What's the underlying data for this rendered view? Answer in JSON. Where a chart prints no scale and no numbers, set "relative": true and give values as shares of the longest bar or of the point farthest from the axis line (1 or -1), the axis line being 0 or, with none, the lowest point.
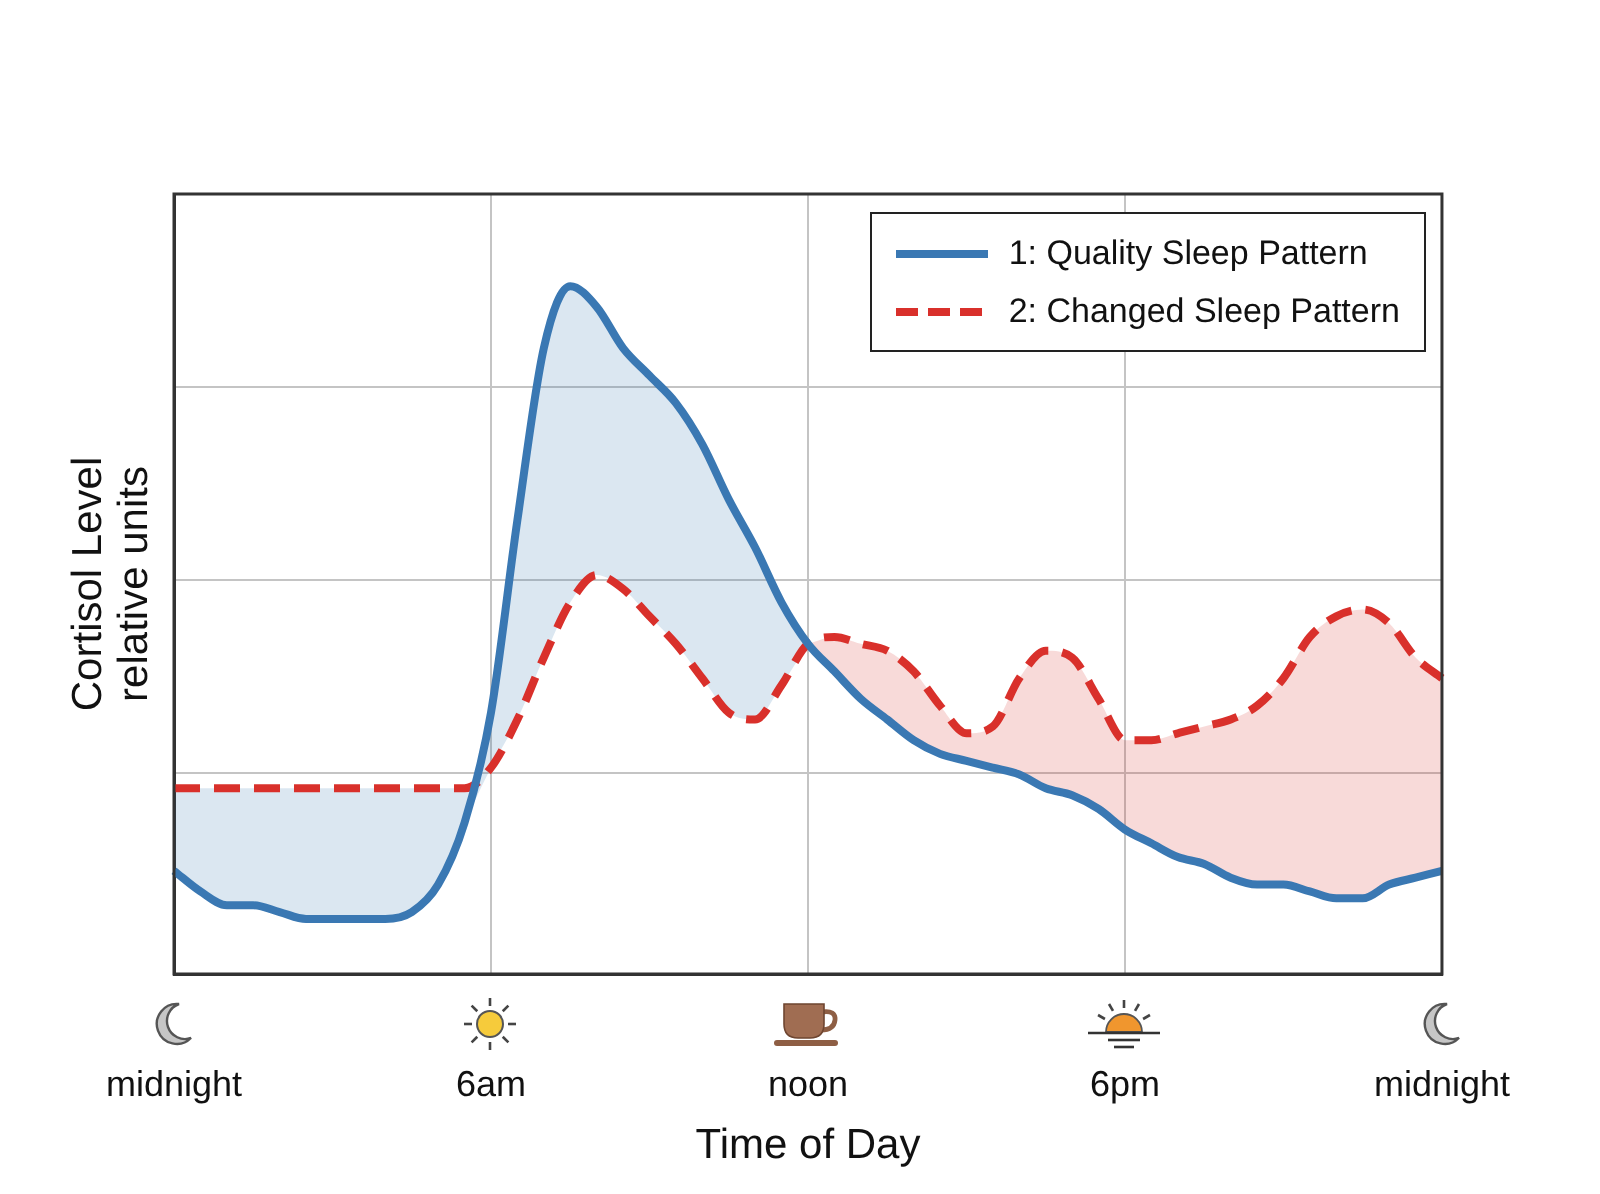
{
  "chart_data": {
    "type": "line",
    "xlabel": "Time of Day",
    "ylabel": "Cortisol Level\nrelative units",
    "relative": true,
    "categories": [
      "midnight",
      null,
      null,
      null,
      null,
      null,
      null,
      null,
      null,
      null,
      null,
      null,
      "6am",
      null,
      null,
      null,
      null,
      null,
      null,
      null,
      null,
      null,
      null,
      null,
      "noon",
      null,
      null,
      null,
      null,
      null,
      null,
      null,
      null,
      null,
      null,
      null,
      "6pm",
      null,
      null,
      null,
      null,
      null,
      null,
      null,
      null,
      null,
      null,
      null,
      "midnight"
    ],
    "grid": true,
    "legend": "top right",
    "marker": "none",
    "series": [
      {
        "name": "1: Quality Sleep Pattern",
        "color": "#3a78b3",
        "line_style": "solid",
        "values": [
          0.15,
          0.12,
          0.1,
          0.1,
          0.09,
          0.08,
          0.08,
          0.08,
          0.08,
          0.09,
          0.13,
          0.22,
          0.38,
          0.66,
          0.91,
          1,
          0.97,
          0.91,
          0.87,
          0.83,
          0.77,
          0.69,
          0.62,
          0.54,
          0.48,
          0.44,
          0.4,
          0.37,
          0.34,
          0.32,
          0.31,
          0.3,
          0.29,
          0.27,
          0.26,
          0.24,
          0.21,
          0.19,
          0.17,
          0.16,
          0.14,
          0.13,
          0.13,
          0.12,
          0.11,
          0.11,
          0.13,
          0.14,
          0.15
        ],
        "lower": [
          0.15,
          0.12,
          0.1,
          0.1,
          0.09,
          0.08,
          0.08,
          0.08,
          0.08,
          0.09,
          0.13,
          0.22,
          0.3,
          0.37,
          0.46,
          0.54,
          0.58,
          0.56,
          0.52,
          0.48,
          0.43,
          0.38,
          0.37,
          0.42,
          0.48,
          null,
          null,
          null,
          null,
          null,
          null,
          null,
          null,
          null,
          null,
          null,
          null,
          null,
          null,
          null,
          null,
          null,
          null,
          null,
          null,
          null,
          null,
          null,
          null
        ],
        "upper": [
          0.27,
          0.27,
          0.27,
          0.27,
          0.27,
          0.27,
          0.27,
          0.27,
          0.27,
          0.27,
          0.27,
          0.27,
          0.38,
          0.66,
          0.91,
          1,
          0.97,
          0.91,
          0.87,
          0.83,
          0.77,
          0.69,
          0.62,
          0.54,
          0.48,
          null,
          null,
          null,
          null,
          null,
          null,
          null,
          null,
          null,
          null,
          null,
          null,
          null,
          null,
          null,
          null,
          null,
          null,
          null,
          null,
          null,
          null,
          null,
          null
        ]
      },
      {
        "name": "2: Changed Sleep Pattern",
        "color": "#d9302b",
        "line_style": "dashed",
        "values": [
          0.27,
          0.27,
          0.27,
          0.27,
          0.27,
          0.27,
          0.27,
          0.27,
          0.27,
          0.27,
          0.27,
          0.27,
          0.3,
          0.37,
          0.46,
          0.54,
          0.58,
          0.56,
          0.52,
          0.48,
          0.43,
          0.38,
          0.37,
          0.42,
          0.48,
          0.49,
          0.48,
          0.47,
          0.44,
          0.39,
          0.35,
          0.36,
          0.43,
          0.47,
          0.46,
          0.4,
          0.34,
          0.34,
          0.35,
          0.36,
          0.37,
          0.39,
          0.43,
          0.49,
          0.52,
          0.53,
          0.51,
          0.46,
          0.43
        ],
        "lower": [
          null,
          null,
          null,
          null,
          null,
          null,
          null,
          null,
          null,
          null,
          null,
          null,
          null,
          null,
          null,
          null,
          null,
          null,
          null,
          null,
          null,
          null,
          null,
          null,
          0.48,
          0.44,
          0.4,
          0.37,
          0.34,
          0.32,
          0.31,
          0.3,
          0.29,
          0.27,
          0.26,
          0.24,
          0.21,
          0.19,
          0.17,
          0.16,
          0.14,
          0.13,
          0.13,
          0.12,
          0.11,
          0.11,
          0.13,
          0.14,
          0.15
        ],
        "upper": [
          null,
          null,
          null,
          null,
          null,
          null,
          null,
          null,
          null,
          null,
          null,
          null,
          null,
          null,
          null,
          null,
          null,
          null,
          null,
          null,
          null,
          null,
          null,
          null,
          0.48,
          0.49,
          0.48,
          0.47,
          0.44,
          0.39,
          0.35,
          0.36,
          0.43,
          0.47,
          0.46,
          0.4,
          0.34,
          0.34,
          0.35,
          0.36,
          0.37,
          0.39,
          0.43,
          0.49,
          0.52,
          0.53,
          0.51,
          0.46,
          0.43
        ]
      }
    ]
  }
}
